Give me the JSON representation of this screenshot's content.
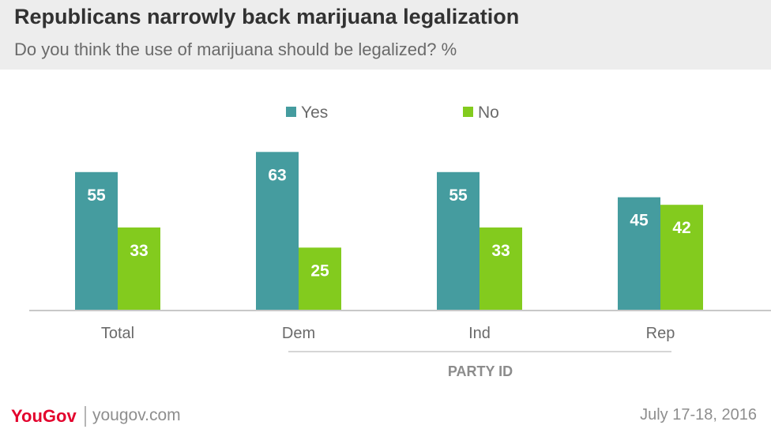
{
  "chart_data": {
    "type": "bar",
    "title": "Republicans narrowly back marijuana legalization",
    "subtitle": "Do you think the use of marijuana should be legalized? %",
    "categories": [
      "Total",
      "Dem",
      "Ind",
      "Rep"
    ],
    "series": [
      {
        "name": "Yes",
        "color": "#459c9f",
        "values": [
          55,
          63,
          55,
          45
        ]
      },
      {
        "name": "No",
        "color": "#83cb1e",
        "values": [
          33,
          25,
          33,
          42
        ]
      }
    ],
    "group_label": "PARTY ID",
    "ylim": [
      0,
      70
    ],
    "xlabel": "",
    "ylabel": "",
    "legend_position": "top-center"
  },
  "footer": {
    "logo": "YouGov",
    "site": "yougov.com",
    "date": "July 17-18, 2016"
  },
  "colors": {
    "axis": "#c8c8c8",
    "label_text": "#6a6a6a",
    "value_text": "#ffffff",
    "header_bg": "#ededed",
    "brand": "#e3032d"
  }
}
